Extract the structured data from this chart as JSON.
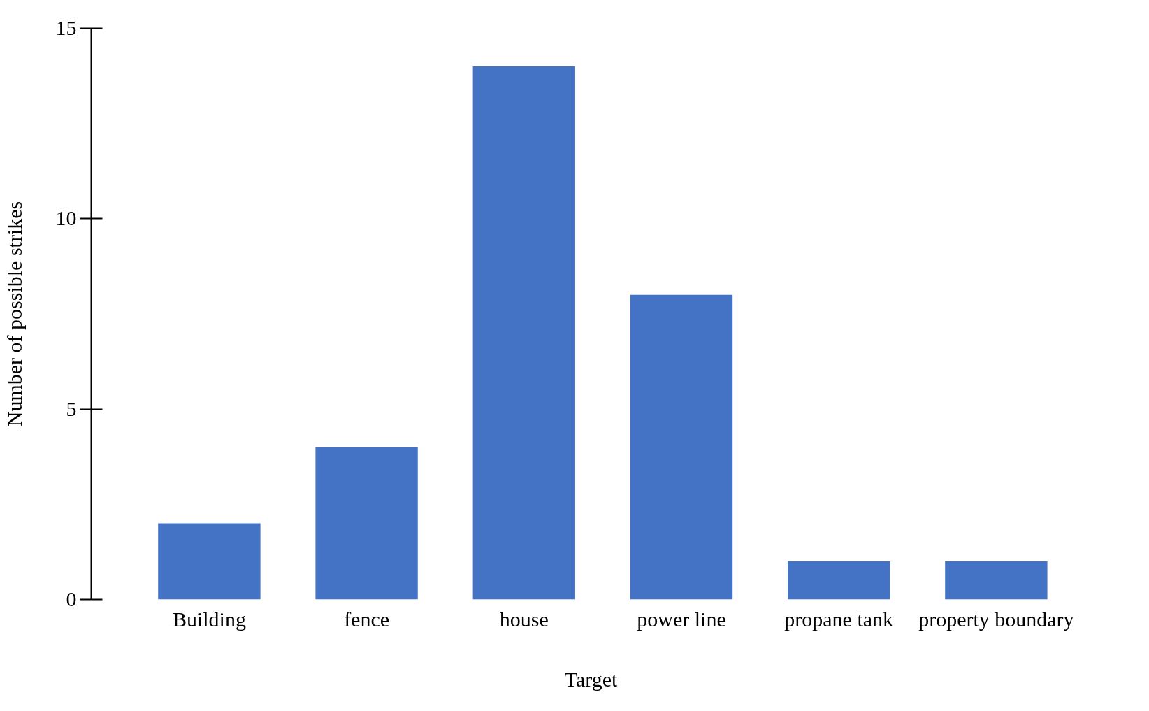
{
  "chart_data": {
    "type": "bar",
    "xlabel": "Target",
    "ylabel": "Number of possible strikes",
    "categories": [
      "Building",
      "fence",
      "house",
      "power line",
      "propane tank",
      "property boundary"
    ],
    "values": [
      2,
      4,
      14,
      8,
      1,
      1
    ],
    "color": "#4472c4",
    "ylim": [
      0,
      15
    ],
    "yticks": [
      0,
      5,
      10,
      15
    ],
    "grid": false
  }
}
